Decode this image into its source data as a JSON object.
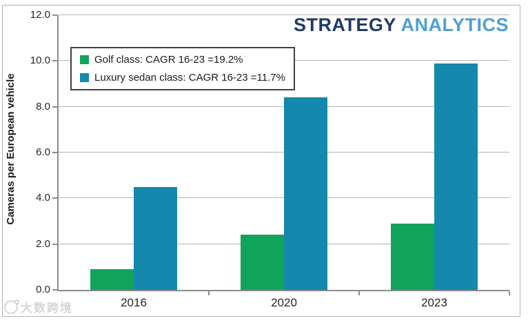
{
  "chart_data": {
    "type": "bar",
    "title": "",
    "categories": [
      "2016",
      "2020",
      "2023"
    ],
    "series": [
      {
        "name": "Golf class: CAGR 16-23 =19.2%",
        "color": "#10A45B",
        "values": [
          0.9,
          2.4,
          2.9
        ]
      },
      {
        "name": "Luxury sedan class: CAGR 16-23 =11.7%",
        "color": "#1489AD",
        "values": [
          4.5,
          8.4,
          9.9
        ]
      }
    ],
    "xlabel": "",
    "ylabel": "Cameras per European vehicle",
    "ylim": [
      0,
      12
    ],
    "ytick_step": 2,
    "ytick_labels": [
      "0.0",
      "2.0",
      "4.0",
      "6.0",
      "8.0",
      "10.0",
      "12.0"
    ],
    "grid": true,
    "legend_position": "top-left-inside"
  },
  "branding": {
    "logo_part1": "STRATEGY",
    "logo_part2": "ANALYTICS",
    "logo_color1": "#1F3B66",
    "logo_color2": "#4E9FD4"
  },
  "axis_style": {
    "axis_color": "#8c8c8c",
    "gridline_color": "#b5b5b5",
    "tick_label_color": "#262626"
  },
  "watermark": {
    "text": "大数跨境",
    "icon": "circle-degree-logo"
  }
}
